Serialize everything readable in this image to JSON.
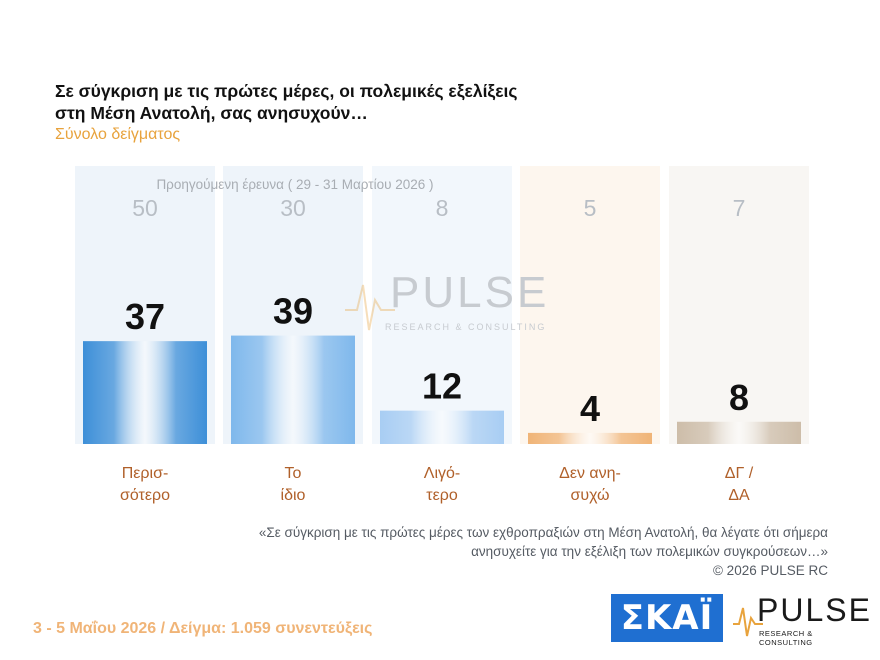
{
  "header": {
    "title_line1": "Σε σύγκριση με τις πρώτες μέρες, οι πολεμικές εξελίξεις",
    "title_line2": "στη Μέση Ανατολή, σας ανησυχούν…",
    "subtitle": "Σύνολο δείγματος"
  },
  "previous_survey_label": "Προηγούμενη έρευνα ( 29 - 31 Μαρτίου 2026 )",
  "watermark": {
    "brand": "PULSE",
    "tagline": "RESEARCH & CONSULTING"
  },
  "chart_data": {
    "type": "bar",
    "categories": [
      [
        "Περισ-",
        "σότερο"
      ],
      [
        "Το",
        "ίδιο"
      ],
      [
        "Λιγό-",
        "τερο"
      ],
      [
        "Δεν ανη-",
        "συχώ"
      ],
      [
        "ΔΓ /",
        "ΔΑ"
      ]
    ],
    "series": [
      {
        "values": [
          37,
          39,
          12,
          4,
          8
        ]
      },
      {
        "name": "Προηγούμενη έρευνα ( 29 - 31 Μαρτίου 2026 )",
        "values": [
          50,
          30,
          8,
          5,
          7
        ]
      }
    ],
    "ylim": [
      0,
      100
    ],
    "colors": {
      "current": [
        "#3d8fd8",
        "#7fb8ec",
        "#a8cdf3",
        "#f0b477",
        "#cdbda9"
      ],
      "previous_bg": [
        "#eef4fa",
        "#eef4fa",
        "#f2f7fc",
        "#fdf6ee",
        "#f8f6f3"
      ],
      "previous_label": "#b8bec5",
      "value_label": "#111111",
      "category_label": "#b0602a"
    }
  },
  "note": {
    "line1": "«Σε σύγκριση με τις πρώτες μέρες των εχθροπραξιών στη Μέση Ανατολή, θα λέγατε ότι σήμερα",
    "line2": "ανησυχείτε για την εξέλιξη των πολεμικών συγκρούσεων…»",
    "line3": "©  2026  PULSE RC"
  },
  "footer": "3 - 5  Μαΐου 2026  /  Δείγμα:  1.059 συνεντεύξεις",
  "logos": {
    "skai": "ΣΚΑΪ",
    "pulse": "PULSE",
    "pulse_tagline": "RESEARCH & CONSULTING"
  }
}
